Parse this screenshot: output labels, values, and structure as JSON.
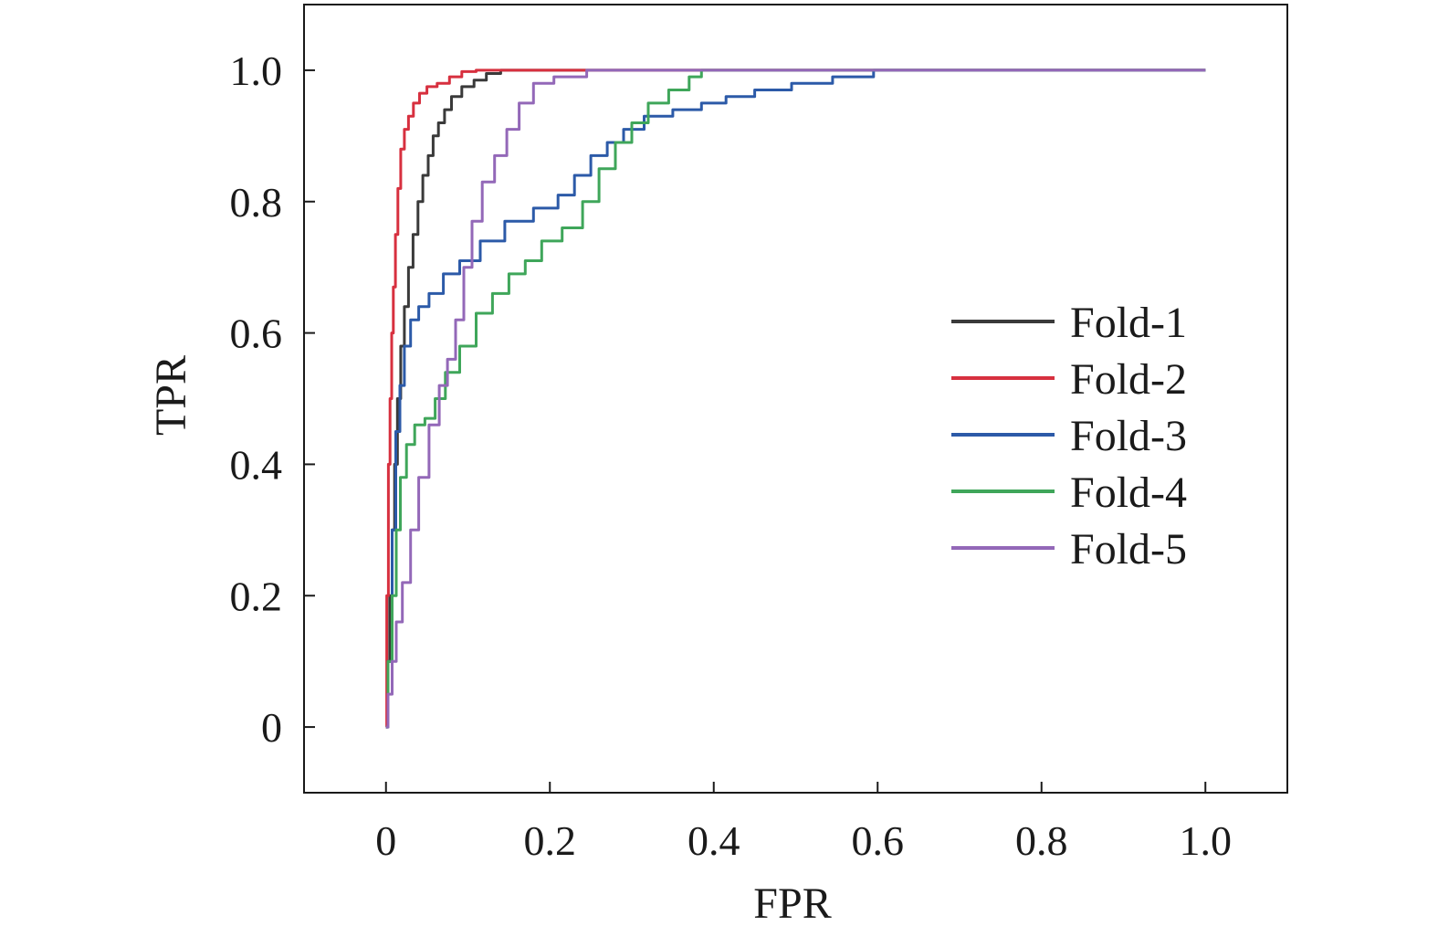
{
  "chart_data": {
    "type": "line",
    "title": "",
    "xlabel": "FPR",
    "ylabel": "TPR",
    "xlim": [
      -0.1,
      1.1
    ],
    "ylim": [
      -0.1,
      1.1
    ],
    "xticks": [
      0,
      0.2,
      0.4,
      0.6,
      0.8,
      1.0
    ],
    "xtick_labels": [
      "0",
      "0.2",
      "0.4",
      "0.6",
      "0.8",
      "1.0"
    ],
    "yticks": [
      0,
      0.2,
      0.4,
      0.6,
      0.8,
      1.0
    ],
    "ytick_labels": [
      "0",
      "0.2",
      "0.4",
      "0.6",
      "0.8",
      "1.0"
    ],
    "grid": false,
    "legend_position": "right",
    "series": [
      {
        "name": "Fold-1",
        "color": "#3a3a3a",
        "points": [
          [
            0,
            0
          ],
          [
            0.003,
            0.1
          ],
          [
            0.006,
            0.2
          ],
          [
            0.009,
            0.3
          ],
          [
            0.012,
            0.4
          ],
          [
            0.016,
            0.5
          ],
          [
            0.02,
            0.58
          ],
          [
            0.025,
            0.64
          ],
          [
            0.03,
            0.7
          ],
          [
            0.036,
            0.75
          ],
          [
            0.042,
            0.8
          ],
          [
            0.048,
            0.84
          ],
          [
            0.055,
            0.87
          ],
          [
            0.06,
            0.9
          ],
          [
            0.068,
            0.92
          ],
          [
            0.075,
            0.94
          ],
          [
            0.085,
            0.96
          ],
          [
            0.1,
            0.975
          ],
          [
            0.115,
            0.985
          ],
          [
            0.13,
            0.995
          ],
          [
            0.15,
            1.0
          ],
          [
            0.2,
            1.0
          ],
          [
            1.0,
            1.0
          ]
        ]
      },
      {
        "name": "Fold-2",
        "color": "#d7303f",
        "points": [
          [
            0,
            0
          ],
          [
            0.002,
            0.2
          ],
          [
            0.004,
            0.4
          ],
          [
            0.006,
            0.5
          ],
          [
            0.008,
            0.6
          ],
          [
            0.01,
            0.67
          ],
          [
            0.013,
            0.75
          ],
          [
            0.016,
            0.82
          ],
          [
            0.02,
            0.88
          ],
          [
            0.025,
            0.91
          ],
          [
            0.03,
            0.93
          ],
          [
            0.037,
            0.95
          ],
          [
            0.045,
            0.965
          ],
          [
            0.055,
            0.975
          ],
          [
            0.07,
            0.98
          ],
          [
            0.085,
            0.99
          ],
          [
            0.1,
            0.998
          ],
          [
            0.12,
            1.0
          ],
          [
            1.0,
            1.0
          ]
        ]
      },
      {
        "name": "Fold-3",
        "color": "#2c5aa8",
        "points": [
          [
            0,
            0
          ],
          [
            0.005,
            0.1
          ],
          [
            0.01,
            0.3
          ],
          [
            0.014,
            0.45
          ],
          [
            0.02,
            0.52
          ],
          [
            0.025,
            0.58
          ],
          [
            0.035,
            0.62
          ],
          [
            0.045,
            0.64
          ],
          [
            0.06,
            0.66
          ],
          [
            0.08,
            0.69
          ],
          [
            0.1,
            0.71
          ],
          [
            0.13,
            0.74
          ],
          [
            0.16,
            0.77
          ],
          [
            0.2,
            0.79
          ],
          [
            0.22,
            0.81
          ],
          [
            0.24,
            0.84
          ],
          [
            0.26,
            0.87
          ],
          [
            0.28,
            0.89
          ],
          [
            0.3,
            0.91
          ],
          [
            0.33,
            0.93
          ],
          [
            0.37,
            0.94
          ],
          [
            0.4,
            0.95
          ],
          [
            0.43,
            0.96
          ],
          [
            0.47,
            0.97
          ],
          [
            0.52,
            0.98
          ],
          [
            0.57,
            0.99
          ],
          [
            0.62,
            1.0
          ],
          [
            1.0,
            1.0
          ]
        ]
      },
      {
        "name": "Fold-4",
        "color": "#3fa65a",
        "points": [
          [
            0,
            0
          ],
          [
            0.005,
            0.1
          ],
          [
            0.01,
            0.2
          ],
          [
            0.015,
            0.3
          ],
          [
            0.02,
            0.38
          ],
          [
            0.03,
            0.43
          ],
          [
            0.04,
            0.46
          ],
          [
            0.055,
            0.47
          ],
          [
            0.065,
            0.5
          ],
          [
            0.08,
            0.54
          ],
          [
            0.1,
            0.58
          ],
          [
            0.12,
            0.63
          ],
          [
            0.14,
            0.66
          ],
          [
            0.16,
            0.69
          ],
          [
            0.18,
            0.71
          ],
          [
            0.2,
            0.74
          ],
          [
            0.23,
            0.76
          ],
          [
            0.25,
            0.8
          ],
          [
            0.27,
            0.85
          ],
          [
            0.29,
            0.89
          ],
          [
            0.31,
            0.92
          ],
          [
            0.33,
            0.95
          ],
          [
            0.36,
            0.97
          ],
          [
            0.38,
            0.99
          ],
          [
            0.39,
            1.0
          ],
          [
            1.0,
            1.0
          ]
        ]
      },
      {
        "name": "Fold-5",
        "color": "#9368b8",
        "points": [
          [
            0,
            0
          ],
          [
            0.005,
            0.05
          ],
          [
            0.01,
            0.1
          ],
          [
            0.015,
            0.16
          ],
          [
            0.025,
            0.22
          ],
          [
            0.035,
            0.3
          ],
          [
            0.045,
            0.38
          ],
          [
            0.06,
            0.46
          ],
          [
            0.07,
            0.52
          ],
          [
            0.08,
            0.56
          ],
          [
            0.09,
            0.62
          ],
          [
            0.1,
            0.7
          ],
          [
            0.11,
            0.77
          ],
          [
            0.125,
            0.83
          ],
          [
            0.14,
            0.87
          ],
          [
            0.155,
            0.91
          ],
          [
            0.17,
            0.95
          ],
          [
            0.19,
            0.98
          ],
          [
            0.22,
            0.99
          ],
          [
            0.27,
            1.0
          ],
          [
            1.0,
            1.0
          ]
        ]
      }
    ]
  }
}
